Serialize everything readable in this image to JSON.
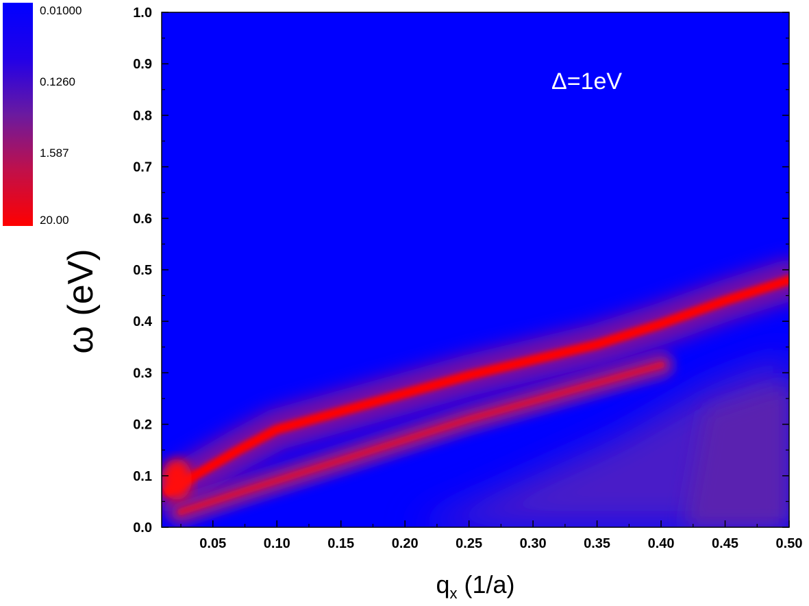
{
  "chart_data": {
    "type": "heatmap",
    "xlabel": "q",
    "xlabel_sub": "x",
    "xlabel_unit": " (1/a)",
    "ylabel": "ω (eV)",
    "xlim": [
      0.01,
      0.5
    ],
    "ylim": [
      0.0,
      1.0
    ],
    "x_ticks": [
      "0.05",
      "0.10",
      "0.15",
      "0.20",
      "0.25",
      "0.30",
      "0.35",
      "0.40",
      "0.45",
      "0.50"
    ],
    "x_tick_values": [
      0.05,
      0.1,
      0.15,
      0.2,
      0.25,
      0.3,
      0.35,
      0.4,
      0.45,
      0.5
    ],
    "y_ticks": [
      "0.0",
      "0.1",
      "0.2",
      "0.3",
      "0.4",
      "0.5",
      "0.6",
      "0.7",
      "0.8",
      "0.9",
      "1.0"
    ],
    "y_tick_values": [
      0.0,
      0.1,
      0.2,
      0.3,
      0.4,
      0.5,
      0.6,
      0.7,
      0.8,
      0.9,
      1.0
    ],
    "annotation": "Δ=1eV",
    "colorbar": {
      "labels": [
        "0.01000",
        "0.1260",
        "1.587",
        "20.00"
      ],
      "values": [
        0.01,
        0.126,
        1.587,
        20.0
      ],
      "scale": "log",
      "low_color": "#0000ff",
      "high_color": "#ff0000"
    },
    "features": [
      {
        "name": "upper-branch",
        "points": [
          [
            0.015,
            0.07
          ],
          [
            0.07,
            0.15
          ],
          [
            0.1,
            0.19
          ],
          [
            0.15,
            0.225
          ],
          [
            0.2,
            0.26
          ],
          [
            0.25,
            0.295
          ],
          [
            0.3,
            0.325
          ],
          [
            0.35,
            0.355
          ],
          [
            0.4,
            0.395
          ],
          [
            0.45,
            0.44
          ],
          [
            0.5,
            0.48
          ]
        ]
      },
      {
        "name": "lower-branch",
        "points": [
          [
            0.025,
            0.03
          ],
          [
            0.08,
            0.075
          ],
          [
            0.15,
            0.13
          ],
          [
            0.2,
            0.17
          ],
          [
            0.25,
            0.21
          ],
          [
            0.3,
            0.245
          ],
          [
            0.35,
            0.28
          ],
          [
            0.4,
            0.315
          ]
        ]
      }
    ],
    "grid": false,
    "colors": {
      "background": "#0000ff",
      "peak": "#ff0000",
      "mid": "#5a1fbf"
    }
  }
}
